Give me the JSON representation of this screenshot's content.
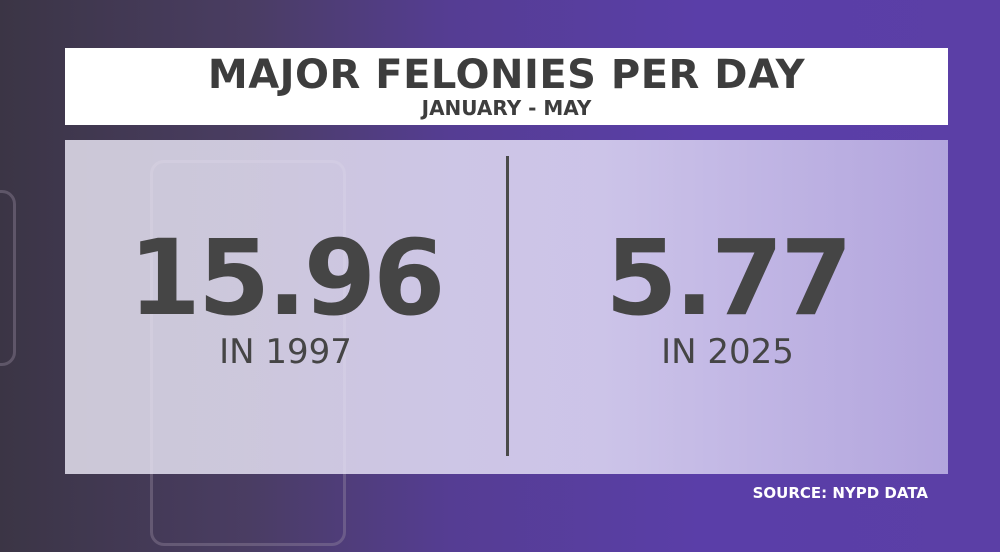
{
  "header": {
    "title": "MAJOR FELONIES PER DAY",
    "subtitle": "JANUARY - MAY"
  },
  "stats": [
    {
      "value": "15.96",
      "label": "IN 1997"
    },
    {
      "value": "5.77",
      "label": "IN 2025"
    }
  ],
  "source": "SOURCE: NYPD DATA"
}
